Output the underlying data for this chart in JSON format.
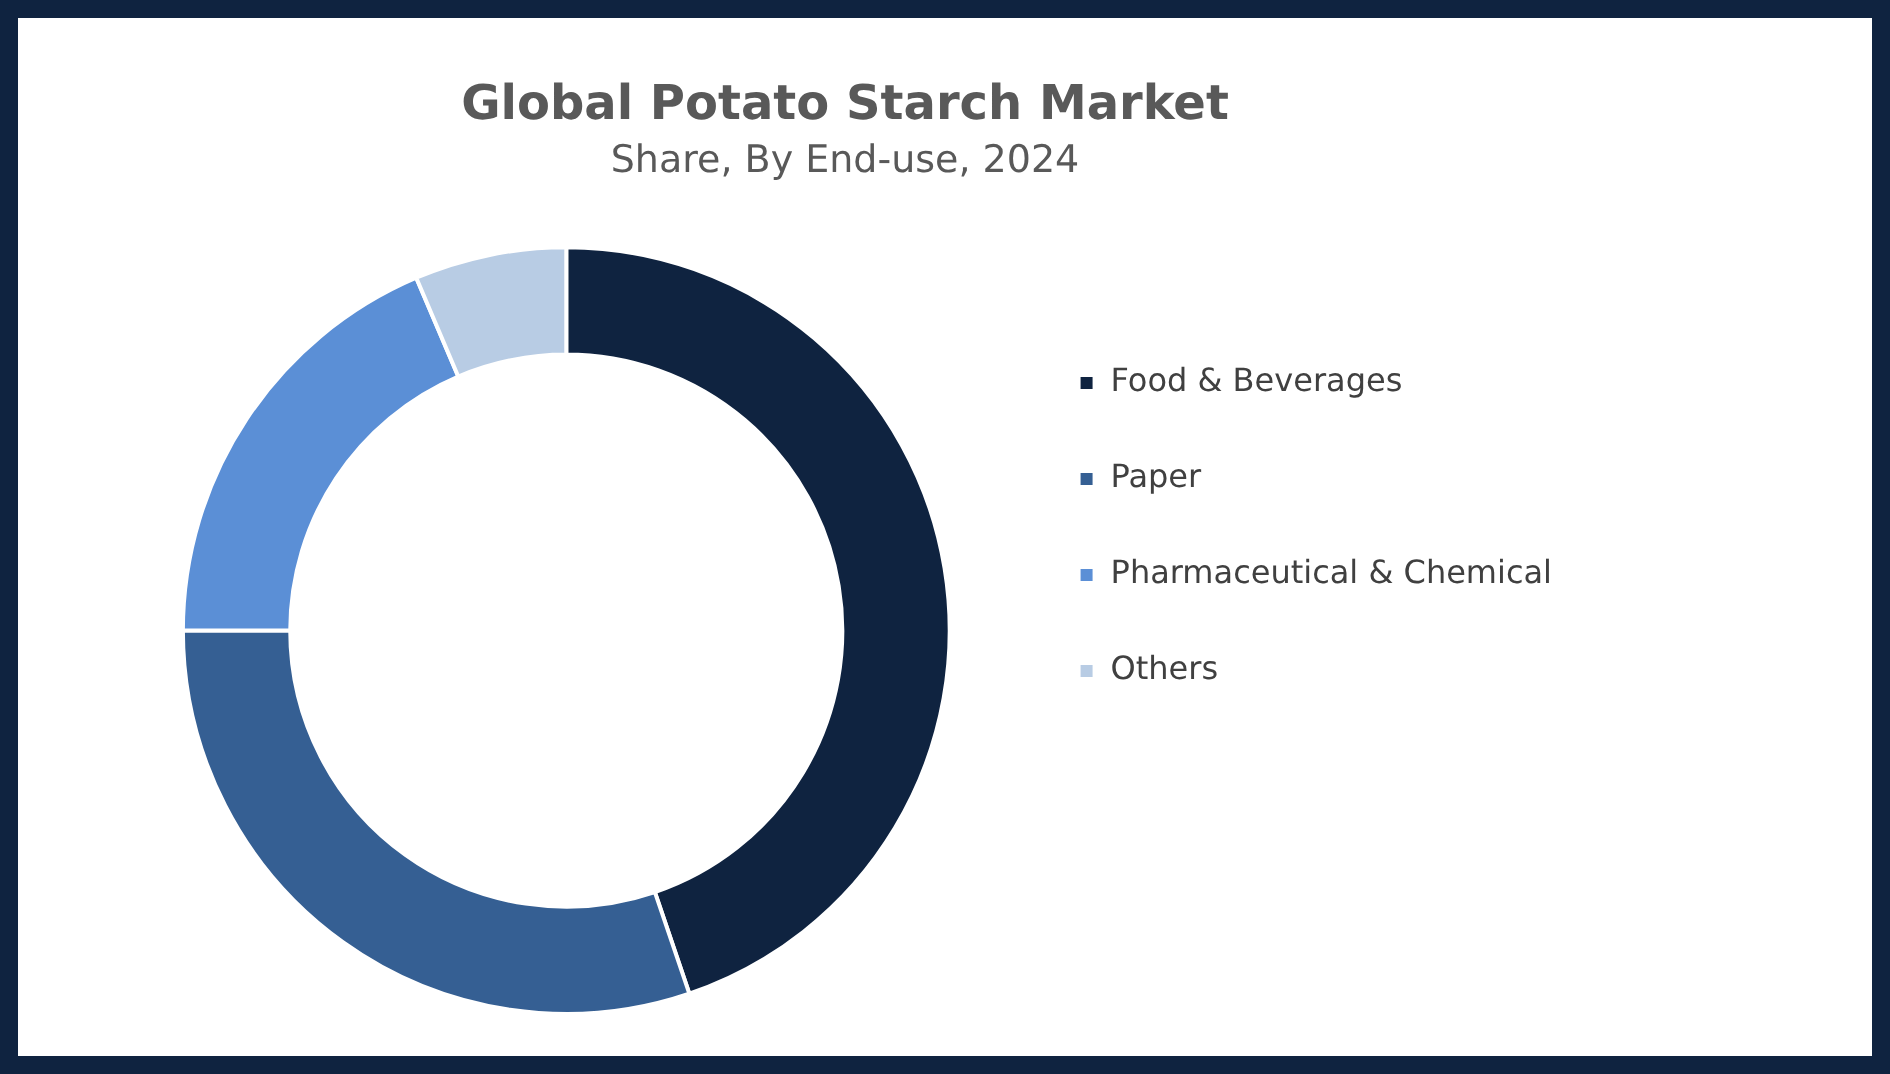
{
  "chart_data": {
    "type": "donut",
    "title": "Global Potato Starch Market",
    "subtitle": "Share, By End-use, 2024",
    "categories": [
      "Food & Beverages",
      "Paper",
      "Pharmaceutical & Chemical",
      "Others"
    ],
    "values": [
      44.8,
      30.2,
      18.6,
      6.4
    ],
    "colors": [
      "#0f2340",
      "#355f93",
      "#5b8fd6",
      "#b8cce4"
    ],
    "legend": "right"
  }
}
